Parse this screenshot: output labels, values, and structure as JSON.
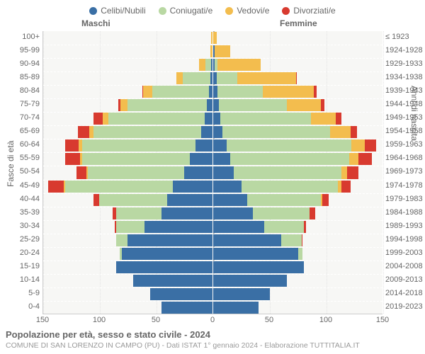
{
  "legend": [
    {
      "label": "Celibi/Nubili",
      "color": "#3a6fa5"
    },
    {
      "label": "Coniugati/e",
      "color": "#b9d8a3"
    },
    {
      "label": "Vedovi/e",
      "color": "#f3bd4e"
    },
    {
      "label": "Divorziati/e",
      "color": "#d83a2f"
    }
  ],
  "headers": {
    "male": "Maschi",
    "female": "Femmine"
  },
  "axis_titles": {
    "left": "Fasce di età",
    "right": "Anni di nascita"
  },
  "chart": {
    "type": "population-pyramid",
    "background_color": "#f7f7f5",
    "xlim": 150,
    "xticks": [
      150,
      100,
      50,
      0,
      50,
      100,
      150
    ],
    "segment_colors": {
      "single": "#3a6fa5",
      "married": "#b9d8a3",
      "widow": "#f3bd4e",
      "divorced": "#d83a2f"
    }
  },
  "rows": [
    {
      "age": "100+",
      "birth": "≤ 1923",
      "m": [
        0,
        0,
        1,
        0
      ],
      "f": [
        0,
        0,
        3,
        0
      ]
    },
    {
      "age": "95-99",
      "birth": "1924-1928",
      "m": [
        0,
        0,
        2,
        0
      ],
      "f": [
        1,
        0,
        14,
        0
      ]
    },
    {
      "age": "90-94",
      "birth": "1929-1933",
      "m": [
        1,
        5,
        6,
        0
      ],
      "f": [
        1,
        3,
        38,
        0
      ]
    },
    {
      "age": "85-89",
      "birth": "1934-1938",
      "m": [
        2,
        24,
        6,
        0
      ],
      "f": [
        3,
        18,
        52,
        1
      ]
    },
    {
      "age": "80-84",
      "birth": "1939-1943",
      "m": [
        3,
        50,
        8,
        1
      ],
      "f": [
        4,
        40,
        45,
        2
      ]
    },
    {
      "age": "75-79",
      "birth": "1944-1948",
      "m": [
        5,
        70,
        6,
        2
      ],
      "f": [
        5,
        60,
        30,
        3
      ]
    },
    {
      "age": "70-74",
      "birth": "1949-1953",
      "m": [
        7,
        85,
        5,
        8
      ],
      "f": [
        6,
        80,
        22,
        5
      ]
    },
    {
      "age": "65-69",
      "birth": "1954-1958",
      "m": [
        10,
        95,
        4,
        10
      ],
      "f": [
        8,
        95,
        18,
        6
      ]
    },
    {
      "age": "60-64",
      "birth": "1959-1963",
      "m": [
        15,
        100,
        3,
        12
      ],
      "f": [
        12,
        110,
        12,
        10
      ]
    },
    {
      "age": "55-59",
      "birth": "1964-1968",
      "m": [
        20,
        95,
        2,
        13
      ],
      "f": [
        15,
        105,
        8,
        12
      ]
    },
    {
      "age": "50-54",
      "birth": "1969-1973",
      "m": [
        25,
        85,
        1,
        9
      ],
      "f": [
        18,
        95,
        5,
        10
      ]
    },
    {
      "age": "45-49",
      "birth": "1974-1978",
      "m": [
        35,
        95,
        1,
        14
      ],
      "f": [
        25,
        85,
        3,
        8
      ]
    },
    {
      "age": "40-44",
      "birth": "1979-1983",
      "m": [
        40,
        60,
        0,
        5
      ],
      "f": [
        30,
        65,
        1,
        6
      ]
    },
    {
      "age": "35-39",
      "birth": "1984-1988",
      "m": [
        45,
        40,
        0,
        3
      ],
      "f": [
        35,
        50,
        0,
        5
      ]
    },
    {
      "age": "30-34",
      "birth": "1989-1993",
      "m": [
        60,
        25,
        0,
        1
      ],
      "f": [
        45,
        35,
        0,
        2
      ]
    },
    {
      "age": "25-29",
      "birth": "1994-1998",
      "m": [
        75,
        10,
        0,
        0
      ],
      "f": [
        60,
        18,
        0,
        1
      ]
    },
    {
      "age": "20-24",
      "birth": "1999-2003",
      "m": [
        80,
        2,
        0,
        0
      ],
      "f": [
        75,
        4,
        0,
        0
      ]
    },
    {
      "age": "15-19",
      "birth": "2004-2008",
      "m": [
        85,
        0,
        0,
        0
      ],
      "f": [
        80,
        0,
        0,
        0
      ]
    },
    {
      "age": "10-14",
      "birth": "2009-2013",
      "m": [
        70,
        0,
        0,
        0
      ],
      "f": [
        65,
        0,
        0,
        0
      ]
    },
    {
      "age": "5-9",
      "birth": "2014-2018",
      "m": [
        55,
        0,
        0,
        0
      ],
      "f": [
        50,
        0,
        0,
        0
      ]
    },
    {
      "age": "0-4",
      "birth": "2019-2023",
      "m": [
        45,
        0,
        0,
        0
      ],
      "f": [
        40,
        0,
        0,
        0
      ]
    }
  ],
  "footer": {
    "title": "Popolazione per età, sesso e stato civile - 2024",
    "subtitle": "COMUNE DI SAN LORENZO IN CAMPO (PU) - Dati ISTAT 1° gennaio 2024 - Elaborazione TUTTITALIA.IT"
  }
}
